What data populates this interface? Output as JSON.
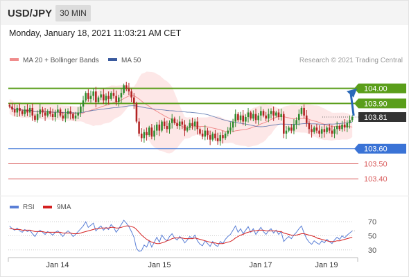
{
  "header": {
    "symbol": "USD/JPY",
    "timeframe": "30 MIN"
  },
  "datetime": "Monday, January 18, 2021 11:03:21 AM CET",
  "colors": {
    "ma20": "#f08c8c",
    "ma50": "#3a5a9e",
    "band": "#fde3e3",
    "up": "#2e8b2e",
    "down": "#b22222",
    "resistance": "#5a9e1a",
    "support": "#3a73d6",
    "support_minor": "#d95c5c",
    "last_price": "#333333",
    "rsi": "#5a7fd6",
    "rsi_ma": "#d42020",
    "arrow": "#2a68b8"
  },
  "chart_data": [
    {
      "type": "candlestick",
      "legend": [
        {
          "name": "MA 20 + Bollinger Bands",
          "color": "#f08c8c"
        },
        {
          "name": "MA 50",
          "color": "#3a5a9e"
        }
      ],
      "legend_position": "top-left",
      "watermark": "Research © 2021 Trading Central",
      "x_ticks": [
        "Jan 14",
        "Jan 15",
        "Jan 17",
        "Jan 19"
      ],
      "ylim": [
        103.3,
        104.15
      ],
      "price_levels": [
        {
          "label": "104.00",
          "value": 104.0,
          "kind": "resistance"
        },
        {
          "label": "103.90",
          "value": 103.9,
          "kind": "resistance"
        },
        {
          "label": "103.81",
          "value": 103.81,
          "kind": "last"
        },
        {
          "label": "103.60",
          "value": 103.6,
          "kind": "support"
        },
        {
          "label": "103.50",
          "value": 103.5,
          "kind": "support_minor"
        },
        {
          "label": "103.40",
          "value": 103.4,
          "kind": "support_minor"
        }
      ],
      "close": [
        103.88,
        103.86,
        103.84,
        103.87,
        103.85,
        103.83,
        103.86,
        103.84,
        103.87,
        103.82,
        103.79,
        103.83,
        103.86,
        103.84,
        103.82,
        103.85,
        103.83,
        103.81,
        103.84,
        103.86,
        103.82,
        103.8,
        103.83,
        103.85,
        103.83,
        103.8,
        103.82,
        103.84,
        103.88,
        103.92,
        103.97,
        103.93,
        103.95,
        103.98,
        103.91,
        103.94,
        103.96,
        103.92,
        103.95,
        103.93,
        103.97,
        103.95,
        103.91,
        103.94,
        103.97,
        104.02,
        104.0,
        103.98,
        103.94,
        103.9,
        103.78,
        103.7,
        103.67,
        103.71,
        103.69,
        103.74,
        103.68,
        103.72,
        103.76,
        103.72,
        103.78,
        103.75,
        103.73,
        103.77,
        103.8,
        103.77,
        103.75,
        103.78,
        103.76,
        103.72,
        103.74,
        103.77,
        103.75,
        103.78,
        103.73,
        103.7,
        103.68,
        103.72,
        103.69,
        103.66,
        103.7,
        103.67,
        103.65,
        103.69,
        103.67,
        103.7,
        103.72,
        103.74,
        103.78,
        103.83,
        103.79,
        103.82,
        103.78,
        103.81,
        103.84,
        103.8,
        103.83,
        103.79,
        103.82,
        103.85,
        103.82,
        103.8,
        103.83,
        103.85,
        103.82,
        103.84,
        103.81,
        103.83,
        103.7,
        103.72,
        103.74,
        103.72,
        103.76,
        103.79,
        103.83,
        103.87,
        103.82,
        103.77,
        103.73,
        103.71,
        103.74,
        103.72,
        103.7,
        103.73,
        103.71,
        103.74,
        103.72,
        103.7,
        103.73,
        103.75,
        103.73,
        103.76,
        103.74,
        103.77,
        103.79,
        103.81
      ]
    },
    {
      "type": "line",
      "series": [
        {
          "name": "RSI",
          "color": "#5a7fd6"
        },
        {
          "name": "9MA",
          "color": "#d42020"
        }
      ],
      "y_ticks": [
        70,
        50,
        30
      ],
      "ylim": [
        25,
        78
      ],
      "rsi_values": [
        64,
        60,
        58,
        61,
        57,
        55,
        59,
        56,
        58,
        53,
        49,
        55,
        58,
        55,
        52,
        56,
        54,
        51,
        55,
        57,
        53,
        49,
        54,
        57,
        54,
        49,
        52,
        56,
        60,
        64,
        70,
        62,
        65,
        68,
        57,
        61,
        64,
        58,
        62,
        59,
        66,
        62,
        55,
        60,
        66,
        72,
        68,
        63,
        56,
        48,
        32,
        28,
        29,
        37,
        34,
        43,
        34,
        41,
        48,
        41,
        51,
        46,
        43,
        49,
        53,
        47,
        44,
        49,
        46,
        40,
        44,
        49,
        46,
        51,
        43,
        38,
        36,
        43,
        39,
        35,
        42,
        37,
        35,
        42,
        39,
        45,
        49,
        52,
        58,
        64,
        55,
        60,
        53,
        58,
        63,
        55,
        60,
        52,
        57,
        62,
        56,
        52,
        57,
        60,
        54,
        58,
        52,
        56,
        42,
        46,
        49,
        46,
        51,
        55,
        60,
        64,
        54,
        46,
        41,
        38,
        43,
        40,
        38,
        43,
        40,
        45,
        42,
        39,
        44,
        48,
        45,
        50,
        47,
        51,
        54,
        57
      ],
      "ma_values": [
        60,
        60,
        59,
        59,
        59,
        58,
        58,
        58,
        58,
        57,
        56,
        56,
        56,
        56,
        55,
        55,
        55,
        55,
        55,
        55,
        55,
        54,
        54,
        54,
        54,
        53,
        53,
        53,
        54,
        55,
        56,
        57,
        58,
        59,
        60,
        60,
        61,
        61,
        61,
        61,
        62,
        62,
        61,
        61,
        62,
        63,
        64,
        64,
        63,
        62,
        59,
        55,
        51,
        48,
        45,
        43,
        41,
        40,
        39,
        39,
        40,
        41,
        43,
        44,
        46,
        47,
        47,
        47,
        47,
        46,
        46,
        46,
        46,
        47,
        46,
        45,
        44,
        43,
        42,
        41,
        40,
        40,
        39,
        39,
        39,
        40,
        41,
        42,
        44,
        47,
        49,
        51,
        52,
        54,
        55,
        56,
        57,
        57,
        58,
        58,
        58,
        57,
        57,
        57,
        57,
        57,
        56,
        56,
        54,
        53,
        52,
        51,
        51,
        51,
        52,
        53,
        53,
        52,
        51,
        50,
        49,
        47,
        46,
        45,
        44,
        43,
        42,
        42,
        42,
        43,
        43,
        44,
        45,
        46,
        47,
        48
      ]
    }
  ]
}
